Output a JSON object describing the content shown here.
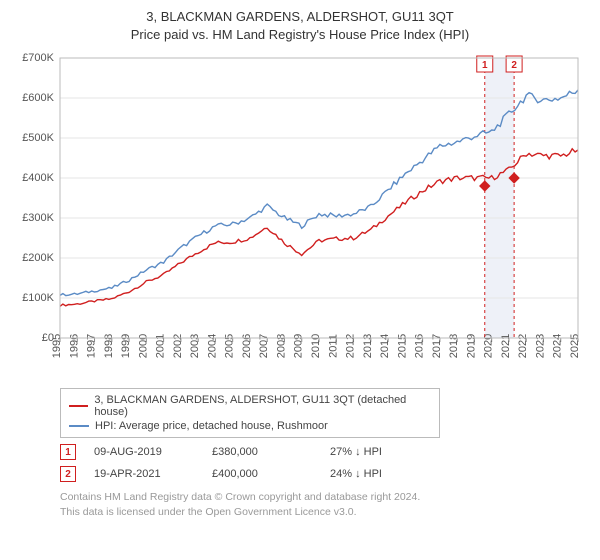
{
  "title_line1": "3, BLACKMAN GARDENS, ALDERSHOT, GU11 3QT",
  "title_line2": "Price paid vs. HM Land Registry's House Price Index (HPI)",
  "chart": {
    "type": "line",
    "background_color": "#ffffff",
    "plot_border_color": "#bbbbbb",
    "grid_color": "#e6e6e6",
    "x_years": [
      1995,
      1996,
      1997,
      1998,
      1999,
      2000,
      2001,
      2002,
      2003,
      2004,
      2005,
      2006,
      2007,
      2008,
      2009,
      2010,
      2011,
      2012,
      2013,
      2014,
      2015,
      2016,
      2017,
      2018,
      2019,
      2020,
      2021,
      2022,
      2023,
      2024,
      2025
    ],
    "ylim": [
      0,
      700000
    ],
    "ytick_step": 100000,
    "ytick_labels": [
      "£0",
      "£100K",
      "£200K",
      "£300K",
      "£400K",
      "£500K",
      "£600K",
      "£700K"
    ],
    "label_fontsize": 11,
    "title_fontsize": 13,
    "series": [
      {
        "name": "hpi",
        "color": "#5b8bc5",
        "line_width": 1.4,
        "values": [
          108,
          110,
          118,
          125,
          145,
          170,
          190,
          225,
          255,
          280,
          285,
          300,
          330,
          300,
          280,
          310,
          305,
          310,
          328,
          370,
          410,
          445,
          480,
          490,
          505,
          515,
          560,
          605,
          595,
          600,
          620
        ]
      },
      {
        "name": "property",
        "color": "#d01f1f",
        "line_width": 1.4,
        "values": [
          82,
          85,
          92,
          98,
          116,
          140,
          158,
          188,
          215,
          238,
          240,
          250,
          278,
          238,
          210,
          243,
          248,
          250,
          270,
          305,
          338,
          368,
          392,
          400,
          400,
          400,
          420,
          462,
          456,
          455,
          470
        ]
      }
    ],
    "marker_bands": [
      {
        "id": 1,
        "year": 2019.6,
        "color": "#d01f1f"
      },
      {
        "id": 2,
        "year": 2021.3,
        "color": "#d01f1f"
      }
    ],
    "band_fill": "#eef1f8",
    "marker_points": [
      {
        "year": 2019.6,
        "value": 380,
        "color": "#d01f1f"
      },
      {
        "year": 2021.3,
        "value": 400,
        "color": "#d01f1f"
      }
    ]
  },
  "legend": {
    "items": [
      {
        "color": "#d01f1f",
        "label": "3, BLACKMAN GARDENS, ALDERSHOT, GU11 3QT (detached house)"
      },
      {
        "color": "#5b8bc5",
        "label": "HPI: Average price, detached house, Rushmoor"
      }
    ]
  },
  "markers": [
    {
      "badge": "1",
      "badge_color": "#d01f1f",
      "date": "09-AUG-2019",
      "price": "£380,000",
      "delta": "27% ↓ HPI"
    },
    {
      "badge": "2",
      "badge_color": "#d01f1f",
      "date": "19-APR-2021",
      "price": "£400,000",
      "delta": "24% ↓ HPI"
    }
  ],
  "footer_line1": "Contains HM Land Registry data © Crown copyright and database right 2024.",
  "footer_line2": "This data is licensed under the Open Government Licence v3.0."
}
